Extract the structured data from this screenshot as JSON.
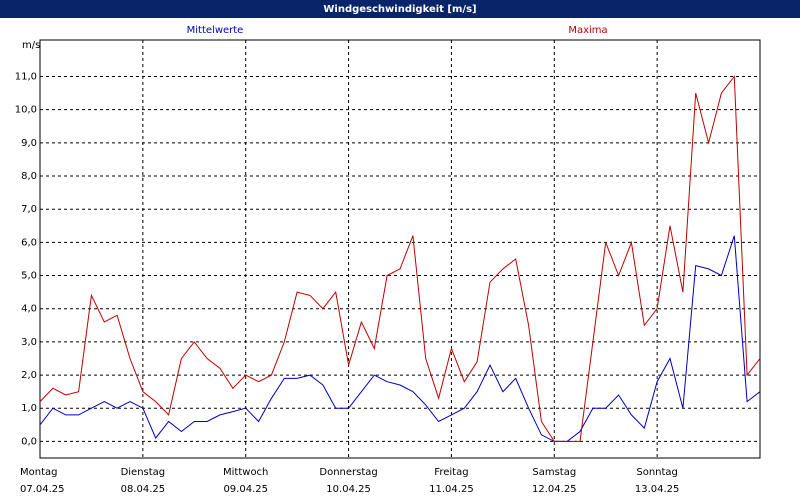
{
  "chart_data": {
    "type": "line",
    "title": "Windgeschwindigkeit [m/s]",
    "y_unit": "m/s",
    "x": [
      0,
      3,
      6,
      9,
      12,
      15,
      18,
      21,
      24,
      27,
      30,
      33,
      36,
      39,
      42,
      45,
      48,
      51,
      54,
      57,
      60,
      63,
      66,
      69,
      72,
      75,
      78,
      81,
      84,
      87,
      90,
      93,
      96,
      99,
      102,
      105,
      108,
      111,
      114,
      117,
      120,
      123,
      126,
      129,
      132,
      135,
      138,
      141,
      144,
      147,
      150,
      153,
      156,
      159,
      162,
      165,
      168
    ],
    "series": [
      {
        "name": "Mittelwerte",
        "color": "#0000c0",
        "values": [
          0.5,
          1.0,
          0.8,
          0.8,
          1.0,
          1.2,
          1.0,
          1.2,
          1.0,
          0.1,
          0.6,
          0.3,
          0.6,
          0.6,
          0.8,
          0.9,
          1.0,
          0.6,
          1.3,
          1.9,
          1.9,
          2.0,
          1.7,
          1.0,
          1.0,
          1.5,
          2.0,
          1.8,
          1.7,
          1.5,
          1.1,
          0.6,
          0.8,
          1.0,
          1.5,
          2.3,
          1.5,
          1.9,
          1.0,
          0.2,
          0.0,
          0.0,
          0.3,
          1.0,
          1.0,
          1.4,
          0.8,
          0.4,
          1.8,
          2.5,
          1.0,
          5.3,
          5.2,
          5.0,
          6.2,
          1.2,
          1.5
        ]
      },
      {
        "name": "Maxima",
        "color": "#c00000",
        "values": [
          1.2,
          1.6,
          1.4,
          1.5,
          4.4,
          3.6,
          3.8,
          2.5,
          1.5,
          1.2,
          0.8,
          2.5,
          3.0,
          2.5,
          2.2,
          1.6,
          2.0,
          1.8,
          2.0,
          3.0,
          4.5,
          4.4,
          4.0,
          4.5,
          2.3,
          3.6,
          2.8,
          5.0,
          5.2,
          6.2,
          2.5,
          1.3,
          2.8,
          1.8,
          2.4,
          4.8,
          5.2,
          5.5,
          3.5,
          0.6,
          0.0,
          0.0,
          0.0,
          3.0,
          6.0,
          5.0,
          6.0,
          3.5,
          4.0,
          6.5,
          4.5,
          10.5,
          9.0,
          10.5,
          11.0,
          2.0,
          2.5
        ]
      }
    ],
    "xlim": [
      0,
      168
    ],
    "ylim": [
      -0.5,
      12.1
    ],
    "yticks": [
      {
        "value": 0,
        "label": "0,0"
      },
      {
        "value": 1,
        "label": "1,0"
      },
      {
        "value": 2,
        "label": "2,0"
      },
      {
        "value": 3,
        "label": "3,0"
      },
      {
        "value": 4,
        "label": "4,0"
      },
      {
        "value": 5,
        "label": "5,0"
      },
      {
        "value": 6,
        "label": "6,0"
      },
      {
        "value": 7,
        "label": "7,0"
      },
      {
        "value": 8,
        "label": "8,0"
      },
      {
        "value": 9,
        "label": "9,0"
      },
      {
        "value": 10,
        "label": "10,0"
      },
      {
        "value": 11,
        "label": "11,0"
      }
    ],
    "xticks": [
      {
        "value": 0,
        "label": "Montag"
      },
      {
        "value": 24,
        "label": "Dienstag"
      },
      {
        "value": 48,
        "label": "Mittwoch"
      },
      {
        "value": 72,
        "label": "Donnerstag"
      },
      {
        "value": 96,
        "label": "Freitag"
      },
      {
        "value": 120,
        "label": "Samstag"
      },
      {
        "value": 144,
        "label": "Sonntag"
      }
    ],
    "xtick_dates": [
      "07.04.25",
      "08.04.25",
      "09.04.25",
      "10.04.25",
      "11.04.25",
      "12.04.25",
      "13.04.25"
    ],
    "grid": true
  }
}
